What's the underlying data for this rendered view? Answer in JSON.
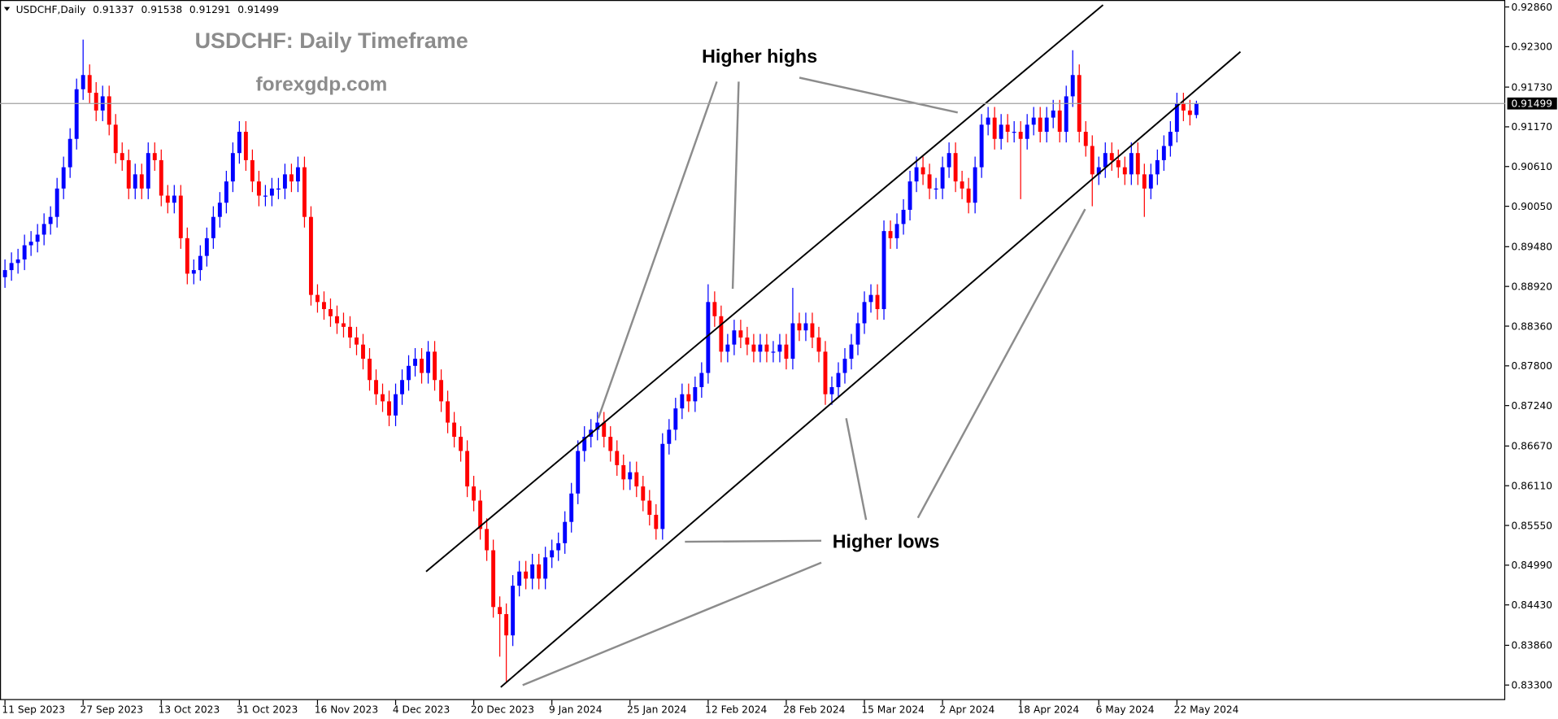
{
  "chart_data": {
    "type": "candlestick",
    "symbol": "USDCHF,Daily",
    "title": "USDCHF: Daily Timeframe",
    "subtitle": "forexgdp.com",
    "annotations": [
      "Higher highs",
      "Higher lows"
    ],
    "up_color": "#0000ff",
    "down_color": "#ff0000",
    "grid": false,
    "categories": [
      "11 Sep 2023",
      null,
      null,
      null,
      null,
      null,
      null,
      null,
      null,
      null,
      null,
      null,
      "27 Sep 2023",
      null,
      null,
      null,
      null,
      null,
      null,
      null,
      null,
      null,
      null,
      null,
      "13 Oct 2023",
      null,
      null,
      null,
      null,
      null,
      null,
      null,
      null,
      null,
      null,
      null,
      "31 Oct 2023",
      null,
      null,
      null,
      null,
      null,
      null,
      null,
      null,
      null,
      null,
      null,
      "16 Nov 2023",
      null,
      null,
      null,
      null,
      null,
      null,
      null,
      null,
      null,
      null,
      null,
      "4 Dec 2023",
      null,
      null,
      null,
      null,
      null,
      null,
      null,
      null,
      null,
      null,
      null,
      "20 Dec 2023",
      null,
      null,
      null,
      null,
      null,
      null,
      null,
      null,
      null,
      null,
      null,
      "9 Jan 2024",
      null,
      null,
      null,
      null,
      null,
      null,
      null,
      null,
      null,
      null,
      null,
      "25 Jan 2024",
      null,
      null,
      null,
      null,
      null,
      null,
      null,
      null,
      null,
      null,
      null,
      "12 Feb 2024",
      null,
      null,
      null,
      null,
      null,
      null,
      null,
      null,
      null,
      null,
      null,
      "28 Feb 2024",
      null,
      null,
      null,
      null,
      null,
      null,
      null,
      null,
      null,
      null,
      null,
      "15 Mar 2024",
      null,
      null,
      null,
      null,
      null,
      null,
      null,
      null,
      null,
      null,
      null,
      "2 Apr 2024",
      null,
      null,
      null,
      null,
      null,
      null,
      null,
      null,
      null,
      null,
      null,
      "18 Apr 2024",
      null,
      null,
      null,
      null,
      null,
      null,
      null,
      null,
      null,
      null,
      null,
      "6 May 2024",
      null,
      null,
      null,
      null,
      null,
      null,
      null,
      null,
      null,
      null,
      null,
      "22 May 2024",
      null,
      null,
      null
    ],
    "open": [
      0.8905,
      0.8915,
      0.8925,
      0.893,
      0.895,
      0.8955,
      0.8965,
      0.898,
      0.899,
      0.903,
      0.906,
      0.91,
      0.917,
      0.919,
      0.9165,
      0.914,
      0.916,
      0.912,
      0.908,
      0.907,
      0.903,
      0.905,
      0.903,
      0.908,
      0.907,
      0.902,
      0.901,
      0.902,
      0.896,
      0.891,
      0.8915,
      0.8935,
      0.896,
      0.899,
      0.901,
      0.904,
      0.908,
      0.911,
      0.907,
      0.904,
      0.902,
      0.902,
      0.903,
      0.903,
      0.905,
      0.904,
      0.906,
      0.899,
      0.888,
      0.887,
      0.886,
      0.885,
      0.884,
      0.8835,
      0.882,
      0.881,
      0.879,
      0.876,
      0.874,
      0.873,
      0.871,
      0.874,
      0.876,
      0.878,
      0.879,
      0.877,
      0.88,
      0.876,
      0.873,
      0.87,
      0.868,
      0.866,
      0.861,
      0.859,
      0.855,
      0.852,
      0.844,
      0.843,
      0.84,
      0.847,
      0.849,
      0.848,
      0.85,
      0.848,
      0.851,
      0.852,
      0.853,
      0.856,
      0.86,
      0.866,
      0.868,
      0.869,
      0.87,
      0.868,
      0.866,
      0.864,
      0.862,
      0.863,
      0.861,
      0.859,
      0.857,
      0.855,
      0.867,
      0.869,
      0.872,
      0.874,
      0.873,
      0.875,
      0.877,
      0.887,
      0.885,
      0.88,
      0.881,
      0.883,
      0.882,
      0.881,
      0.88,
      0.881,
      0.88,
      0.88,
      0.881,
      0.879,
      0.884,
      0.883,
      0.884,
      0.882,
      0.88,
      0.874,
      0.875,
      0.877,
      0.879,
      0.881,
      0.884,
      0.887,
      0.888,
      0.886,
      0.897,
      0.896,
      0.898,
      0.9,
      0.904,
      0.906,
      0.905,
      0.903,
      0.903,
      0.906,
      0.908,
      0.904,
      0.903,
      0.901,
      0.906,
      0.912,
      0.913,
      0.91,
      0.912,
      0.911,
      0.911,
      0.91,
      0.912,
      0.913,
      0.911,
      0.913,
      0.914,
      0.911,
      0.916,
      0.919,
      0.911,
      0.909,
      0.905,
      0.906,
      0.908,
      0.907,
      0.906,
      0.905,
      0.908,
      0.905,
      0.903,
      0.905,
      0.907,
      0.909,
      0.911,
      0.915,
      0.914,
      0.91337
    ],
    "high": [
      0.893,
      0.894,
      0.8945,
      0.8965,
      0.897,
      0.898,
      0.8995,
      0.9005,
      0.9045,
      0.9075,
      0.9115,
      0.9185,
      0.924,
      0.9205,
      0.918,
      0.9175,
      0.9175,
      0.9135,
      0.9095,
      0.9085,
      0.9065,
      0.9065,
      0.9095,
      0.9095,
      0.9085,
      0.9035,
      0.9035,
      0.9035,
      0.8975,
      0.893,
      0.895,
      0.8975,
      0.9005,
      0.9025,
      0.9055,
      0.9095,
      0.9125,
      0.9125,
      0.9085,
      0.9055,
      0.9035,
      0.9045,
      0.9045,
      0.9065,
      0.9065,
      0.9075,
      0.9075,
      0.9005,
      0.8895,
      0.8885,
      0.8875,
      0.8865,
      0.8855,
      0.885,
      0.8835,
      0.8825,
      0.8805,
      0.8775,
      0.8755,
      0.8745,
      0.8755,
      0.8775,
      0.8795,
      0.8805,
      0.8805,
      0.8815,
      0.8815,
      0.8775,
      0.8745,
      0.8715,
      0.8695,
      0.8675,
      0.8625,
      0.8605,
      0.8565,
      0.8535,
      0.8455,
      0.8445,
      0.8485,
      0.8505,
      0.8505,
      0.8515,
      0.8515,
      0.8525,
      0.8535,
      0.8545,
      0.8575,
      0.8615,
      0.8675,
      0.8695,
      0.8705,
      0.8715,
      0.8715,
      0.8695,
      0.8675,
      0.8655,
      0.8645,
      0.8645,
      0.8625,
      0.8605,
      0.8585,
      0.8685,
      0.8705,
      0.8735,
      0.8755,
      0.8755,
      0.8765,
      0.8785,
      0.8895,
      0.8885,
      0.8865,
      0.8825,
      0.8845,
      0.8845,
      0.8835,
      0.8825,
      0.8825,
      0.8825,
      0.8815,
      0.8825,
      0.8825,
      0.889,
      0.8855,
      0.8855,
      0.8855,
      0.8835,
      0.8815,
      0.8765,
      0.8785,
      0.8805,
      0.8825,
      0.8855,
      0.8885,
      0.8895,
      0.8895,
      0.8985,
      0.8985,
      0.8995,
      0.9015,
      0.9055,
      0.9075,
      0.9075,
      0.9065,
      0.9045,
      0.9075,
      0.9095,
      0.9095,
      0.9055,
      0.9045,
      0.9075,
      0.9135,
      0.9145,
      0.9145,
      0.9135,
      0.9135,
      0.9125,
      0.9125,
      0.9135,
      0.9145,
      0.9145,
      0.9145,
      0.9155,
      0.9155,
      0.9175,
      0.9225,
      0.9205,
      0.9125,
      0.9105,
      0.9075,
      0.9095,
      0.9095,
      0.9085,
      0.9075,
      0.9095,
      0.9095,
      0.9065,
      0.9065,
      0.9085,
      0.9105,
      0.9125,
      0.9165,
      0.9165,
      0.9155,
      0.91538
    ],
    "low": [
      0.889,
      0.89,
      0.891,
      0.8915,
      0.8935,
      0.894,
      0.895,
      0.8965,
      0.8975,
      0.9015,
      0.9045,
      0.9085,
      0.9155,
      0.915,
      0.9125,
      0.9125,
      0.9105,
      0.9065,
      0.9055,
      0.9015,
      0.9015,
      0.9015,
      0.9015,
      0.9055,
      0.9005,
      0.8995,
      0.8995,
      0.8945,
      0.8895,
      0.8895,
      0.89,
      0.892,
      0.8945,
      0.8975,
      0.8995,
      0.9025,
      0.9065,
      0.9055,
      0.9025,
      0.9005,
      0.9005,
      0.9005,
      0.9015,
      0.9015,
      0.9025,
      0.9025,
      0.8975,
      0.8865,
      0.8855,
      0.8845,
      0.8835,
      0.8825,
      0.882,
      0.8805,
      0.8795,
      0.8775,
      0.8745,
      0.8725,
      0.8715,
      0.8695,
      0.8695,
      0.8725,
      0.8745,
      0.8765,
      0.8755,
      0.8755,
      0.8745,
      0.8715,
      0.8685,
      0.8665,
      0.8645,
      0.8595,
      0.8575,
      0.8535,
      0.8505,
      0.8425,
      0.837,
      0.8335,
      0.8385,
      0.8455,
      0.8465,
      0.8465,
      0.8465,
      0.8465,
      0.8495,
      0.8505,
      0.8515,
      0.8545,
      0.8585,
      0.8645,
      0.8665,
      0.8675,
      0.8665,
      0.8645,
      0.8625,
      0.8605,
      0.8605,
      0.8595,
      0.8575,
      0.8555,
      0.8535,
      0.8535,
      0.8655,
      0.8675,
      0.8705,
      0.8715,
      0.8715,
      0.8735,
      0.8755,
      0.8835,
      0.8785,
      0.8785,
      0.8795,
      0.8805,
      0.8795,
      0.8785,
      0.8785,
      0.8785,
      0.8785,
      0.8785,
      0.8775,
      0.8775,
      0.8815,
      0.8815,
      0.8805,
      0.8785,
      0.8725,
      0.8725,
      0.8735,
      0.8755,
      0.8775,
      0.8795,
      0.8825,
      0.8855,
      0.8845,
      0.8845,
      0.8945,
      0.8945,
      0.8965,
      0.8985,
      0.9025,
      0.9035,
      0.9015,
      0.9015,
      0.9015,
      0.9045,
      0.9025,
      0.9015,
      0.8995,
      0.8995,
      0.9045,
      0.9105,
      0.9085,
      0.9085,
      0.9095,
      0.9095,
      0.9015,
      0.9085,
      0.9105,
      0.9095,
      0.9095,
      0.9115,
      0.9095,
      0.9095,
      0.9145,
      0.9095,
      0.9075,
      0.9005,
      0.9035,
      0.9045,
      0.9055,
      0.9045,
      0.9035,
      0.9035,
      0.9035,
      0.899,
      0.9015,
      0.9035,
      0.9055,
      0.9075,
      0.9095,
      0.9125,
      0.9119,
      0.91291
    ],
    "close": [
      0.8915,
      0.8925,
      0.893,
      0.895,
      0.8955,
      0.8965,
      0.898,
      0.899,
      0.903,
      0.906,
      0.91,
      0.917,
      0.919,
      0.9165,
      0.914,
      0.916,
      0.912,
      0.908,
      0.907,
      0.903,
      0.905,
      0.903,
      0.908,
      0.907,
      0.902,
      0.901,
      0.902,
      0.896,
      0.891,
      0.8915,
      0.8935,
      0.896,
      0.899,
      0.901,
      0.904,
      0.908,
      0.911,
      0.907,
      0.904,
      0.902,
      0.902,
      0.903,
      0.903,
      0.905,
      0.904,
      0.906,
      0.899,
      0.888,
      0.887,
      0.886,
      0.885,
      0.884,
      0.8835,
      0.882,
      0.881,
      0.879,
      0.876,
      0.874,
      0.873,
      0.871,
      0.874,
      0.876,
      0.878,
      0.879,
      0.877,
      0.88,
      0.876,
      0.873,
      0.87,
      0.868,
      0.866,
      0.861,
      0.859,
      0.855,
      0.852,
      0.844,
      0.843,
      0.84,
      0.847,
      0.849,
      0.848,
      0.85,
      0.848,
      0.851,
      0.852,
      0.853,
      0.856,
      0.86,
      0.866,
      0.868,
      0.869,
      0.87,
      0.868,
      0.866,
      0.864,
      0.862,
      0.863,
      0.861,
      0.859,
      0.857,
      0.855,
      0.867,
      0.869,
      0.872,
      0.874,
      0.873,
      0.875,
      0.877,
      0.887,
      0.885,
      0.88,
      0.881,
      0.883,
      0.882,
      0.881,
      0.88,
      0.881,
      0.88,
      0.88,
      0.881,
      0.879,
      0.884,
      0.883,
      0.884,
      0.882,
      0.88,
      0.874,
      0.875,
      0.877,
      0.879,
      0.881,
      0.884,
      0.887,
      0.888,
      0.886,
      0.897,
      0.896,
      0.898,
      0.9,
      0.904,
      0.906,
      0.905,
      0.903,
      0.903,
      0.906,
      0.908,
      0.904,
      0.903,
      0.901,
      0.906,
      0.912,
      0.913,
      0.91,
      0.912,
      0.911,
      0.911,
      0.91,
      0.912,
      0.913,
      0.911,
      0.913,
      0.914,
      0.911,
      0.916,
      0.919,
      0.911,
      0.909,
      0.905,
      0.906,
      0.908,
      0.907,
      0.906,
      0.905,
      0.908,
      0.905,
      0.903,
      0.905,
      0.907,
      0.909,
      0.911,
      0.915,
      0.914,
      0.91337,
      0.91499
    ],
    "ylim": [
      0.83088,
      0.92958
    ],
    "yticks": [
      {
        "value": 0.9286,
        "label": "0.92860"
      },
      {
        "value": 0.923,
        "label": "0.92300"
      },
      {
        "value": 0.9173,
        "label": "0.91730"
      },
      {
        "value": 0.9117,
        "label": "0.91170"
      },
      {
        "value": 0.9061,
        "label": "0.90610"
      },
      {
        "value": 0.9005,
        "label": "0.90050"
      },
      {
        "value": 0.8948,
        "label": "0.89480"
      },
      {
        "value": 0.8892,
        "label": "0.88920"
      },
      {
        "value": 0.8836,
        "label": "0.88360"
      },
      {
        "value": 0.878,
        "label": "0.87800"
      },
      {
        "value": 0.8724,
        "label": "0.87240"
      },
      {
        "value": 0.8667,
        "label": "0.86670"
      },
      {
        "value": 0.8611,
        "label": "0.86110"
      },
      {
        "value": 0.8555,
        "label": "0.85550"
      },
      {
        "value": 0.8499,
        "label": "0.84990"
      },
      {
        "value": 0.8443,
        "label": "0.84430"
      },
      {
        "value": 0.8386,
        "label": "0.83860"
      },
      {
        "value": 0.833,
        "label": "0.83300"
      }
    ]
  }
}
